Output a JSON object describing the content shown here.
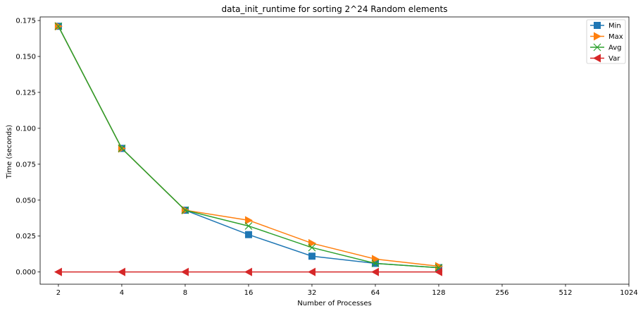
{
  "chart_data": {
    "type": "line",
    "title": "data_init_runtime for sorting 2^24 Random elements",
    "xlabel": "Number of Processes",
    "ylabel": "Time (seconds)",
    "x_scale": "log2",
    "x_ticks": [
      2,
      4,
      8,
      16,
      32,
      64,
      128,
      256,
      512,
      1024
    ],
    "x_tick_labels": [
      "2",
      "4",
      "8",
      "16",
      "32",
      "64",
      "128",
      "256",
      "512",
      "1024"
    ],
    "ylim": [
      -0.0085,
      0.1775
    ],
    "y_ticks": [
      0.0,
      0.025,
      0.05,
      0.075,
      0.1,
      0.125,
      0.15,
      0.175
    ],
    "y_tick_labels": [
      "0.000",
      "0.025",
      "0.050",
      "0.075",
      "0.100",
      "0.125",
      "0.150",
      "0.175"
    ],
    "grid": false,
    "legend_placement": "top-right",
    "x": [
      2,
      4,
      8,
      16,
      32,
      64,
      128
    ],
    "series": [
      {
        "name": "Min",
        "color": "#1f77b4",
        "marker": "square",
        "values": [
          0.171,
          0.086,
          0.043,
          0.026,
          0.011,
          0.006,
          0.003
        ]
      },
      {
        "name": "Max",
        "color": "#ff7f0e",
        "marker": "triangle-right",
        "values": [
          0.171,
          0.086,
          0.043,
          0.036,
          0.02,
          0.009,
          0.004
        ]
      },
      {
        "name": "Avg",
        "color": "#2ca02c",
        "marker": "x",
        "values": [
          0.171,
          0.086,
          0.043,
          0.032,
          0.017,
          0.006,
          0.003
        ]
      },
      {
        "name": "Var",
        "color": "#d62728",
        "marker": "triangle-left",
        "values": [
          0.0,
          0.0,
          0.0,
          0.0,
          0.0,
          0.0,
          0.0
        ]
      }
    ]
  }
}
